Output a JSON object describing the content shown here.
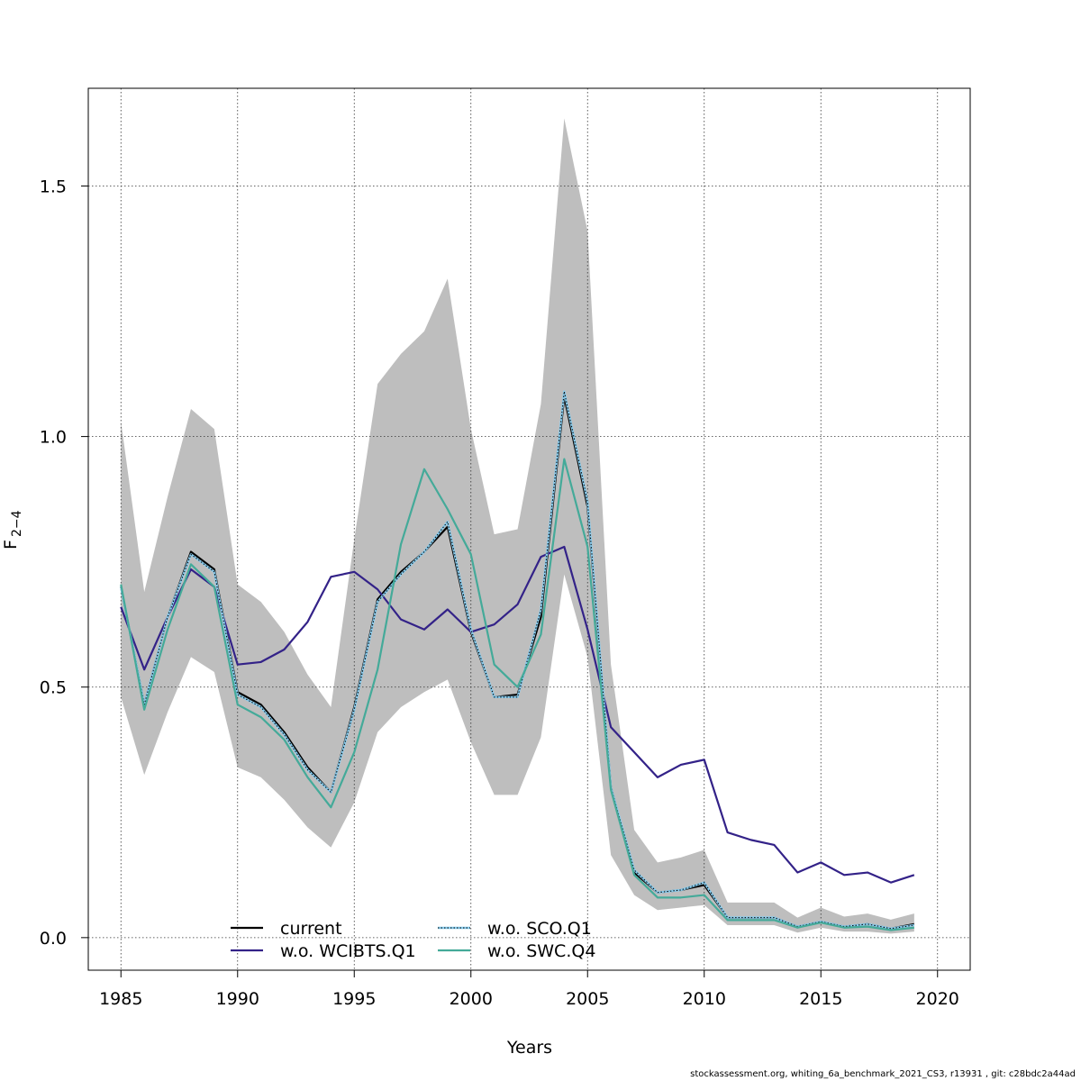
{
  "chart_data": {
    "type": "line",
    "title": "",
    "xlabel": "Years",
    "ylabel": "F̄ 2−4",
    "ylabel_main": "F",
    "ylabel_sub": "2−4",
    "xlim": [
      1983.6,
      2021.4
    ],
    "ylim": [
      -0.065,
      1.695
    ],
    "x_ticks": [
      1985,
      1990,
      1995,
      2000,
      2005,
      2010,
      2015,
      2020
    ],
    "x_tick_labels": [
      "1985",
      "1990",
      "1995",
      "2000",
      "2005",
      "2010",
      "2015",
      "2020"
    ],
    "y_ticks": [
      0.0,
      0.5,
      1.0,
      1.5
    ],
    "y_tick_labels": [
      "0.0",
      "0.5",
      "1.0",
      "1.5"
    ],
    "grid": true,
    "legend_position": "bottom-left",
    "x": [
      1985,
      1986,
      1987,
      1988,
      1989,
      1990,
      1991,
      1992,
      1993,
      1994,
      1995,
      1996,
      1997,
      1998,
      1999,
      2000,
      2001,
      2002,
      2003,
      2004,
      2005,
      2006,
      2007,
      2008,
      2009,
      2010,
      2011,
      2012,
      2013,
      2014,
      2015,
      2016,
      2017,
      2018,
      2019
    ],
    "band": {
      "color": "#bebebe",
      "lower": [
        0.48,
        0.325,
        0.45,
        0.56,
        0.53,
        0.34,
        0.32,
        0.275,
        0.22,
        0.18,
        0.27,
        0.41,
        0.46,
        0.49,
        0.515,
        0.39,
        0.285,
        0.285,
        0.4,
        0.725,
        0.56,
        0.165,
        0.085,
        0.055,
        0.06,
        0.065,
        0.025,
        0.025,
        0.025,
        0.01,
        0.02,
        0.012,
        0.012,
        0.008,
        0.012
      ],
      "upper": [
        1.03,
        0.69,
        0.88,
        1.055,
        1.015,
        0.705,
        0.67,
        0.61,
        0.525,
        0.46,
        0.795,
        1.105,
        1.165,
        1.21,
        1.315,
        1.015,
        0.805,
        0.815,
        1.065,
        1.635,
        1.41,
        0.545,
        0.215,
        0.15,
        0.16,
        0.175,
        0.07,
        0.07,
        0.07,
        0.04,
        0.06,
        0.042,
        0.048,
        0.036,
        0.048
      ]
    },
    "series": [
      {
        "name": "current",
        "color": "#000000",
        "dash": "solid",
        "values": [
          0.7,
          0.465,
          0.64,
          0.77,
          0.735,
          0.49,
          0.465,
          0.41,
          0.34,
          0.29,
          0.46,
          0.675,
          0.73,
          0.77,
          0.82,
          0.61,
          0.48,
          0.485,
          0.64,
          1.08,
          0.86,
          0.3,
          0.13,
          0.09,
          0.095,
          0.105,
          0.04,
          0.04,
          0.04,
          0.022,
          0.032,
          0.022,
          0.027,
          0.018,
          0.027
        ]
      },
      {
        "name": "w.o. WCIBTS.Q1",
        "color": "#332288",
        "dash": "solid",
        "values": [
          0.66,
          0.535,
          0.64,
          0.735,
          0.7,
          0.545,
          0.55,
          0.575,
          0.63,
          0.72,
          0.73,
          0.695,
          0.635,
          0.615,
          0.655,
          0.61,
          0.625,
          0.665,
          0.76,
          0.78,
          0.615,
          0.42,
          0.37,
          0.32,
          0.345,
          0.355,
          0.21,
          0.195,
          0.185,
          0.13,
          0.15,
          0.125,
          0.13,
          0.11,
          0.125
        ]
      },
      {
        "name": "w.o. SCO.Q1",
        "color": "#88ccee",
        "dash": "dotted",
        "values": [
          0.7,
          0.465,
          0.64,
          0.765,
          0.73,
          0.485,
          0.46,
          0.405,
          0.335,
          0.29,
          0.455,
          0.67,
          0.725,
          0.77,
          0.83,
          0.615,
          0.48,
          0.48,
          0.655,
          1.09,
          0.87,
          0.3,
          0.135,
          0.09,
          0.095,
          0.11,
          0.04,
          0.04,
          0.04,
          0.022,
          0.032,
          0.022,
          0.027,
          0.018,
          0.025
        ]
      },
      {
        "name": "w.o. SWC.Q4",
        "color": "#44aa99",
        "dash": "solid",
        "values": [
          0.705,
          0.455,
          0.615,
          0.745,
          0.7,
          0.465,
          0.44,
          0.395,
          0.32,
          0.26,
          0.37,
          0.535,
          0.785,
          0.935,
          0.855,
          0.765,
          0.545,
          0.5,
          0.605,
          0.955,
          0.78,
          0.295,
          0.125,
          0.08,
          0.08,
          0.085,
          0.035,
          0.035,
          0.035,
          0.02,
          0.03,
          0.02,
          0.022,
          0.015,
          0.02
        ]
      }
    ]
  },
  "footer": "stockassessment.org, whiting_6a_benchmark_2021_CS3, r13931 , git: c28bdc2a44ad"
}
